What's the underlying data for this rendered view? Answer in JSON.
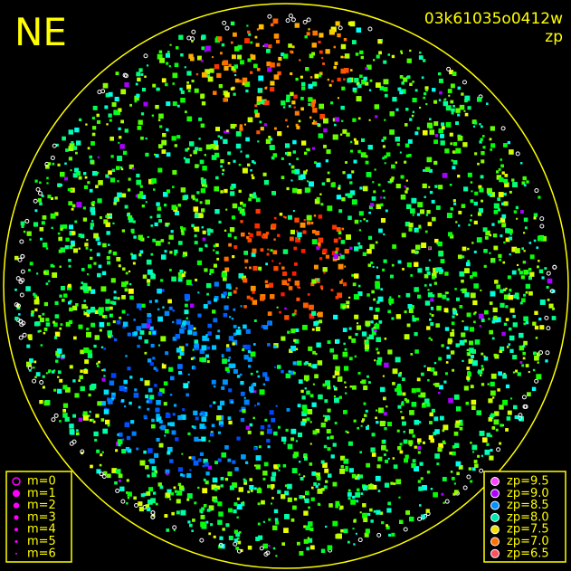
{
  "header": {
    "title": "NE",
    "image_id": "03k61035o0412w",
    "mode": "zp"
  },
  "magnitude_legend": {
    "items": [
      "m=0",
      "m=1",
      "m=2",
      "m=3",
      "m=4",
      "m=5",
      "m=6"
    ]
  },
  "zp_legend": {
    "items": [
      "zp=9.5",
      "zp=9.0",
      "zp=8.5",
      "zp=8.0",
      "zp=7.5",
      "zp=7.0",
      "zp=6.5"
    ]
  }
}
